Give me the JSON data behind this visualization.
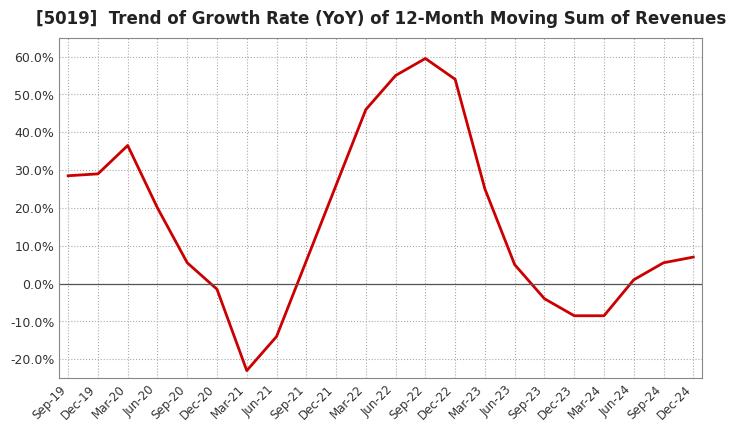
{
  "title": "[5019]  Trend of Growth Rate (YoY) of 12-Month Moving Sum of Revenues",
  "title_fontsize": 12,
  "title_color": "#222222",
  "line_color": "#cc0000",
  "background_color": "#ffffff",
  "plot_bg_color": "#ffffff",
  "grid_color": "#aaaaaa",
  "grid_linestyle": ":",
  "ylim": [
    -25,
    65
  ],
  "yticks": [
    -20,
    -10,
    0,
    10,
    20,
    30,
    40,
    50,
    60
  ],
  "x_labels": [
    "Sep-19",
    "Dec-19",
    "Mar-20",
    "Jun-20",
    "Sep-20",
    "Dec-20",
    "Mar-21",
    "Jun-21",
    "Sep-21",
    "Dec-21",
    "Mar-22",
    "Jun-22",
    "Sep-22",
    "Dec-22",
    "Mar-23",
    "Jun-23",
    "Sep-23",
    "Dec-23",
    "Mar-24",
    "Jun-24",
    "Sep-24",
    "Dec-24"
  ],
  "y_values": [
    28.5,
    29.0,
    36.5,
    20.0,
    5.5,
    -1.5,
    -23.0,
    -14.0,
    6.0,
    26.0,
    46.0,
    55.0,
    59.5,
    54.0,
    25.0,
    5.0,
    -4.0,
    -8.5,
    -8.5,
    1.0,
    5.5,
    7.0
  ]
}
